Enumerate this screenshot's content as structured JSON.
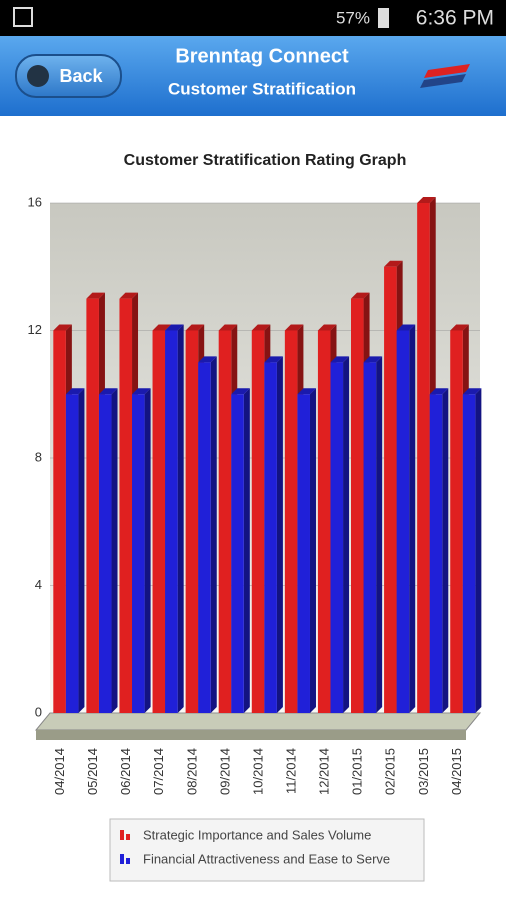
{
  "status_bar": {
    "battery": "57%",
    "time": "6:36 PM"
  },
  "header": {
    "back": "Back",
    "title": "Brenntag Connect",
    "subtitle": "Customer Stratification"
  },
  "chart_data": {
    "type": "bar",
    "title": "Customer Stratification Rating Graph",
    "categories": [
      "04/2014",
      "05/2014",
      "06/2014",
      "07/2014",
      "08/2014",
      "09/2014",
      "10/2014",
      "11/2014",
      "12/2014",
      "01/2015",
      "02/2015",
      "03/2015",
      "04/2015"
    ],
    "series": [
      {
        "name": "Strategic Importance and Sales Volume",
        "color": "#e02020",
        "values": [
          12,
          13,
          13,
          12,
          12,
          12,
          12,
          12,
          12,
          13,
          14,
          16,
          12
        ]
      },
      {
        "name": "Financial Attractiveness and Ease to Serve",
        "color": "#2020d8",
        "values": [
          10,
          10,
          10,
          12,
          11,
          10,
          11,
          10,
          11,
          11,
          12,
          10,
          10
        ]
      }
    ],
    "ylim": [
      0,
      16
    ],
    "yticks": [
      0,
      4,
      8,
      12,
      16
    ],
    "grid": true,
    "legend": "bottom"
  }
}
